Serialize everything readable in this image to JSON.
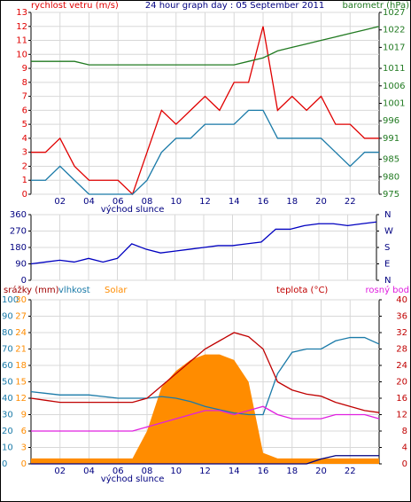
{
  "chart_data": [
    {
      "type": "line",
      "title": "24 hour graph day : 05 September 2011",
      "annotation": "východ slunce",
      "x": [
        0,
        1,
        2,
        3,
        4,
        5,
        6,
        7,
        8,
        9,
        10,
        11,
        12,
        13,
        14,
        15,
        16,
        17,
        18,
        19,
        20,
        21,
        22,
        23,
        24
      ],
      "xlim": [
        0,
        24
      ],
      "xticks": [
        {
          "value": 2,
          "label": "02"
        },
        {
          "value": 4,
          "label": "04"
        },
        {
          "value": 6,
          "label": "06"
        },
        {
          "value": 8,
          "label": "08"
        },
        {
          "value": 10,
          "label": "10"
        },
        {
          "value": 12,
          "label": "12"
        },
        {
          "value": 14,
          "label": "14"
        },
        {
          "value": 16,
          "label": "16"
        },
        {
          "value": 18,
          "label": "18"
        },
        {
          "value": 20,
          "label": "20"
        },
        {
          "value": 22,
          "label": "22"
        }
      ],
      "ylim": [
        0,
        13
      ],
      "yticks": [
        0,
        1,
        2,
        3,
        4,
        5,
        6,
        7,
        8,
        9,
        10,
        11,
        12,
        13
      ],
      "ycolor": "#e00000",
      "y2lim": [
        975,
        1027
      ],
      "y2ticks": [
        975,
        980,
        985,
        991,
        996,
        1001,
        1006,
        1011,
        1017,
        1022,
        1027
      ],
      "y2color": "#217a21",
      "grid": true,
      "series": [
        {
          "name": "rychlost vetru (m/s)",
          "color": "#e00000",
          "axis": "y",
          "legend": "left",
          "values": [
            3,
            3,
            4,
            2,
            1,
            1,
            1,
            0,
            3,
            6,
            5,
            6,
            7,
            6,
            8,
            8,
            12,
            6,
            7,
            6,
            7,
            5,
            5,
            4,
            4
          ]
        },
        {
          "color": "#1a7aa8",
          "axis": "y",
          "values": [
            1,
            1,
            2,
            1,
            0,
            0,
            0,
            0,
            1,
            3,
            4,
            4,
            5,
            5,
            5,
            6,
            6,
            4,
            4,
            4,
            4,
            3,
            2,
            3,
            3
          ]
        },
        {
          "name": "barometr (hPa)",
          "color": "#217a21",
          "axis": "y2",
          "legend": "right",
          "values": [
            1013,
            1013,
            1013,
            1013,
            1012,
            1012,
            1012,
            1012,
            1012,
            1012,
            1012,
            1012,
            1012,
            1012,
            1012,
            1013,
            1014,
            1016,
            1017,
            1018,
            1019,
            1020,
            1021,
            1022,
            1023
          ]
        }
      ]
    },
    {
      "type": "line",
      "x": [
        0,
        1,
        2,
        3,
        4,
        5,
        6,
        7,
        8,
        9,
        10,
        11,
        12,
        13,
        14,
        15,
        16,
        17,
        18,
        19,
        20,
        21,
        22,
        23,
        24
      ],
      "xlim": [
        0,
        24
      ],
      "ylim": [
        0,
        360
      ],
      "yticks": [
        0,
        90,
        180,
        270,
        360
      ],
      "ycolor": "#000080",
      "y2lim": [
        0,
        360
      ],
      "y2ticks": [
        {
          "value": 360,
          "label": "N"
        },
        {
          "value": 270,
          "label": "W"
        },
        {
          "value": 180,
          "label": "S"
        },
        {
          "value": 90,
          "label": "E"
        },
        {
          "value": 0,
          "label": "N"
        }
      ],
      "y2color": "#000080",
      "grid": true,
      "series": [
        {
          "color": "#0000c0",
          "axis": "y",
          "values": [
            90,
            100,
            110,
            100,
            120,
            100,
            120,
            200,
            170,
            150,
            160,
            170,
            180,
            190,
            190,
            200,
            210,
            280,
            280,
            300,
            310,
            310,
            300,
            310,
            320
          ]
        }
      ]
    },
    {
      "type": "line",
      "annotation": "východ slunce",
      "x": [
        0,
        1,
        2,
        3,
        4,
        5,
        6,
        7,
        8,
        9,
        10,
        11,
        12,
        13,
        14,
        15,
        16,
        17,
        18,
        19,
        20,
        21,
        22,
        23,
        24
      ],
      "xlim": [
        0,
        24
      ],
      "xticks": [
        {
          "value": 2,
          "label": "02"
        },
        {
          "value": 4,
          "label": "04"
        },
        {
          "value": 6,
          "label": "06"
        },
        {
          "value": 8,
          "label": "08"
        },
        {
          "value": 10,
          "label": "10"
        },
        {
          "value": 12,
          "label": "12"
        },
        {
          "value": 14,
          "label": "14"
        },
        {
          "value": 16,
          "label": "16"
        },
        {
          "value": 18,
          "label": "18"
        },
        {
          "value": 20,
          "label": "20"
        },
        {
          "value": 22,
          "label": "22"
        }
      ],
      "ylim": [
        0,
        100
      ],
      "yticks": [
        0,
        10,
        20,
        30,
        40,
        50,
        60,
        70,
        80,
        90,
        100
      ],
      "ycolor": "#1a7aa8",
      "y3lim": [
        0,
        30
      ],
      "y3ticks": [
        0,
        3,
        6,
        9,
        12,
        15,
        18,
        21,
        24,
        27,
        30
      ],
      "y3color": "#ff8c00",
      "y2lim": [
        0,
        40
      ],
      "y2ticks": [
        0,
        4,
        8,
        12,
        16,
        20,
        24,
        28,
        32,
        36,
        40
      ],
      "y2color": "#c00000",
      "y4lim": [
        0,
        10
      ],
      "grid": true,
      "series": [
        {
          "name": "Solar",
          "color": "#ff8c00",
          "axis": "y3",
          "area": true,
          "values": [
            1,
            1,
            1,
            1,
            1,
            1,
            1,
            1,
            6,
            14,
            17,
            19,
            20,
            20,
            19,
            15,
            2,
            1,
            1,
            1,
            1,
            1,
            1,
            1,
            1
          ]
        },
        {
          "name": "srážky (mm)",
          "color": "#000080",
          "axis": "y4",
          "values": [
            0,
            0,
            0,
            0,
            0,
            0,
            0,
            0,
            0,
            0,
            0,
            0,
            0,
            0,
            0,
            0,
            0,
            0,
            0,
            0,
            0.3,
            0.5,
            0.5,
            0.5,
            0.5
          ]
        },
        {
          "name": "vlhkost",
          "color": "#1a7aa8",
          "axis": "y",
          "values": [
            44,
            43,
            42,
            42,
            42,
            41,
            40,
            40,
            40,
            41,
            40,
            38,
            35,
            33,
            31,
            30,
            30,
            55,
            68,
            70,
            70,
            75,
            77,
            77,
            73
          ]
        },
        {
          "name": "teplota (°C)",
          "color": "#c00000",
          "axis": "y2",
          "values": [
            16,
            15.5,
            15,
            15,
            15,
            15,
            15,
            15,
            16,
            19,
            22,
            25,
            28,
            30,
            32,
            31,
            28,
            20,
            18,
            17,
            16.5,
            15,
            14,
            13,
            12.5
          ]
        },
        {
          "name": "rosný bod",
          "color": "#e020e0",
          "axis": "y2",
          "values": [
            8,
            8,
            8,
            8,
            8,
            8,
            8,
            8,
            9,
            10,
            11,
            12,
            13,
            13,
            12,
            13,
            14,
            12,
            11,
            11,
            11,
            12,
            12,
            12,
            11
          ]
        }
      ]
    }
  ]
}
